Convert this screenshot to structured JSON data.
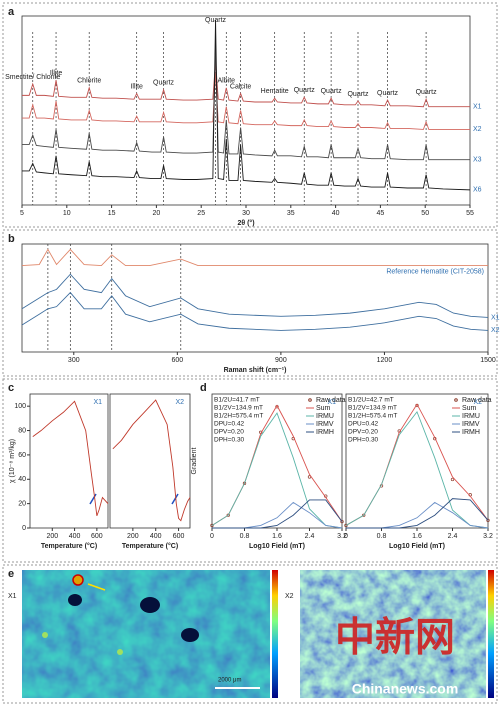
{
  "panels": [
    "a",
    "b",
    "c",
    "d",
    "e"
  ],
  "chart_data": [
    {
      "type": "line",
      "xlabel": "2θ (°)",
      "xlim": [
        5,
        55
      ],
      "xticks": [
        5,
        10,
        15,
        20,
        25,
        30,
        35,
        40,
        45,
        50,
        55
      ],
      "ylim": [
        0,
        100
      ],
      "series_labels": "end",
      "label_color": "#2f6fb0",
      "x": [
        5,
        5.8,
        6.2,
        6.6,
        7.5,
        8.5,
        8.8,
        9.1,
        10.5,
        12.2,
        12.5,
        12.8,
        14,
        15.5,
        17.5,
        17.8,
        18.1,
        19.5,
        20.5,
        20.8,
        21.1,
        23,
        24.5,
        26.3,
        26.6,
        26.9,
        27.5,
        27.8,
        28.1,
        29.1,
        29.4,
        29.7,
        31,
        32.9,
        33.2,
        33.5,
        35,
        36.2,
        36.5,
        36.8,
        38,
        39.2,
        39.5,
        39.8,
        41,
        42.2,
        42.5,
        42.8,
        44,
        45.5,
        45.8,
        46.1,
        48,
        49.8,
        50.1,
        50.4,
        52,
        55
      ],
      "series": [
        {
          "name": "X1",
          "color": "#c0504d",
          "values": [
            58,
            58,
            64,
            58,
            58,
            57.5,
            66,
            57.5,
            57,
            57,
            62,
            57,
            56.5,
            56.5,
            56,
            59,
            56,
            56,
            56,
            61,
            56,
            55.5,
            55.5,
            56,
            76,
            56,
            55.5,
            62,
            55.5,
            55,
            59,
            55,
            54.5,
            54.5,
            56.5,
            54.5,
            54,
            54,
            57,
            54,
            53.5,
            53.5,
            56.5,
            53.5,
            53,
            53,
            55,
            53,
            53,
            52.5,
            55.5,
            52.5,
            52.5,
            52,
            56,
            52,
            52,
            52
          ]
        },
        {
          "name": "X2",
          "color": "#d4675f",
          "values": [
            46,
            46,
            53,
            46,
            46,
            45.5,
            55,
            45.5,
            45,
            45,
            50,
            45,
            44.5,
            44.5,
            44,
            47,
            44,
            44,
            44,
            49,
            44,
            43.5,
            43.5,
            44,
            70,
            44,
            43.5,
            52,
            43.5,
            43,
            50,
            43,
            42.5,
            42.5,
            44.5,
            42.5,
            42,
            42,
            45,
            42,
            41.5,
            41.5,
            44.5,
            41.5,
            41,
            41,
            43,
            41,
            41,
            40.5,
            43.5,
            40.5,
            40.5,
            40,
            44,
            40,
            40,
            40
          ]
        },
        {
          "name": "X3",
          "color": "#4a4a4a",
          "values": [
            32,
            32,
            37,
            31.5,
            31,
            30.5,
            40,
            30.5,
            30,
            29.5,
            38,
            29.5,
            29,
            29,
            28.5,
            33,
            28.5,
            28,
            28,
            36,
            28,
            27.5,
            27.5,
            28,
            85,
            28,
            27.5,
            45,
            27,
            27,
            41,
            27,
            26.5,
            26,
            29,
            26,
            26,
            25.5,
            31,
            25.5,
            25.5,
            25,
            32,
            25,
            25,
            25,
            30,
            25,
            24.5,
            24.5,
            32,
            24.5,
            24,
            24,
            32,
            24,
            24,
            24
          ]
        },
        {
          "name": "X6",
          "color": "#1a1a1a",
          "values": [
            18,
            18,
            22,
            17.5,
            17,
            16.5,
            26,
            16.5,
            16,
            15.5,
            23,
            15.5,
            15,
            15,
            14.5,
            18,
            14.5,
            14,
            14,
            21,
            14,
            13.5,
            13.5,
            14,
            98,
            14,
            13.5,
            35,
            13,
            13,
            32,
            13,
            12.5,
            12,
            14,
            12,
            11.5,
            11,
            17,
            11,
            10.5,
            10.5,
            17,
            10.5,
            10,
            10,
            14,
            10,
            9.5,
            9.5,
            17,
            9.5,
            9,
            9,
            16,
            9,
            8.5,
            8
          ]
        }
      ],
      "annotations": [
        {
          "text": "Smectite/ Chlorite",
          "x": 6.2
        },
        {
          "text": "Illite",
          "x": 8.8
        },
        {
          "text": "Chlorite",
          "x": 12.5
        },
        {
          "text": "Illite",
          "x": 17.8
        },
        {
          "text": "Quartz",
          "x": 20.8
        },
        {
          "text": "Quartz",
          "x": 26.6
        },
        {
          "text": "Albite",
          "x": 27.8
        },
        {
          "text": "Calcite",
          "x": 29.4
        },
        {
          "text": "Hematite",
          "x": 33.2
        },
        {
          "text": "Quartz",
          "x": 36.5
        },
        {
          "text": "Quartz",
          "x": 39.5
        },
        {
          "text": "Quartz",
          "x": 42.5
        },
        {
          "text": "Quartz",
          "x": 45.8
        },
        {
          "text": "Quartz",
          "x": 50.1
        }
      ]
    },
    {
      "type": "line",
      "xlabel": "Raman shift (cm⁻¹)",
      "xlim": [
        150,
        1500
      ],
      "xticks": [
        300,
        600,
        900,
        1200,
        1500
      ],
      "ylim": [
        0,
        100
      ],
      "series_labels": "end",
      "label_color": "#2f6fb0",
      "markers": [
        225,
        290,
        410,
        610
      ],
      "x": [
        150,
        200,
        225,
        250,
        290,
        330,
        380,
        410,
        450,
        520,
        610,
        660,
        750,
        900,
        1000,
        1100,
        1200,
        1300,
        1350,
        1400,
        1450,
        1500
      ],
      "series": [
        {
          "name": "Reference Hematite (CIT-2058)",
          "color": "#e0876a",
          "values": [
            80,
            81,
            95,
            81,
            95,
            81,
            80,
            90,
            80,
            80,
            86,
            80,
            80,
            80,
            80,
            80,
            80,
            80,
            80,
            80,
            80,
            80
          ]
        },
        {
          "name": "X1",
          "color": "#3f6f9f",
          "values": [
            40,
            50,
            55,
            58,
            72,
            58,
            55,
            68,
            52,
            42,
            50,
            40,
            35,
            33,
            34,
            36,
            40,
            46,
            44,
            36,
            33,
            32
          ]
        },
        {
          "name": "X2",
          "color": "#3f6f9f",
          "values": [
            25,
            35,
            40,
            42,
            55,
            40,
            40,
            52,
            35,
            28,
            35,
            26,
            22,
            20,
            21,
            23,
            27,
            33,
            31,
            24,
            21,
            20
          ]
        }
      ]
    },
    {
      "type": "line",
      "title": "X1",
      "xlabel": "Temperature (°C)",
      "ylabel": "χ (10⁻⁸ m³/kg)",
      "xlim": [
        0,
        700
      ],
      "xticks": [
        200,
        400,
        600
      ],
      "ylim": [
        0,
        110
      ],
      "yticks": [
        0,
        20,
        40,
        60,
        80,
        100
      ],
      "x": [
        25,
        100,
        200,
        300,
        400,
        500,
        550,
        580,
        600,
        620,
        650,
        680,
        700
      ],
      "series": [
        {
          "name": "X1",
          "color": "#c0392b",
          "values": [
            75,
            80,
            88,
            95,
            104,
            80,
            45,
            25,
            10,
            15,
            25,
            22,
            20
          ]
        }
      ]
    },
    {
      "type": "line",
      "title": "X2",
      "xlabel": "Temperature (°C)",
      "xlim": [
        0,
        700
      ],
      "xticks": [
        200,
        400,
        600
      ],
      "ylim": [
        0,
        110
      ],
      "x": [
        25,
        100,
        200,
        300,
        400,
        500,
        550,
        580,
        600,
        620,
        650,
        680,
        700
      ],
      "series": [
        {
          "name": "X2",
          "color": "#c0392b",
          "values": [
            65,
            72,
            85,
            95,
            105,
            85,
            50,
            20,
            8,
            6,
            15,
            22,
            25
          ]
        }
      ]
    },
    {
      "type": "line",
      "title": "X1",
      "xlabel": "Log10 Field (mT)",
      "ylabel": "Gradient",
      "xlim": [
        0,
        3.2
      ],
      "xticks": [
        0,
        0.8,
        1.6,
        2.4,
        3.2
      ],
      "ylim": [
        0,
        1.05
      ],
      "legend": "upper right",
      "parameters": [
        "B1/2U=41.7 mT",
        "B1/2V=134.9 mT",
        "B1/2H=575.4 mT",
        "DPU=0.42",
        "DPV=0.20",
        "DPH=0.30"
      ],
      "x": [
        0,
        0.4,
        0.8,
        1.2,
        1.6,
        2.0,
        2.4,
        2.8,
        3.2
      ],
      "series": [
        {
          "name": "Raw data",
          "color": "#8b3a2a",
          "style": "markers",
          "values": [
            0.02,
            0.1,
            0.35,
            0.75,
            0.95,
            0.7,
            0.4,
            0.25,
            0.05
          ]
        },
        {
          "name": "Sum",
          "color": "#d9534f",
          "values": [
            0.02,
            0.1,
            0.35,
            0.74,
            0.96,
            0.72,
            0.42,
            0.24,
            0.05
          ]
        },
        {
          "name": "IRMU",
          "color": "#5bb5a8",
          "values": [
            0.02,
            0.1,
            0.35,
            0.72,
            0.9,
            0.55,
            0.15,
            0.02,
            0
          ]
        },
        {
          "name": "IRMV",
          "color": "#6a8fc7",
          "values": [
            0,
            0,
            0,
            0.02,
            0.08,
            0.2,
            0.12,
            0.02,
            0
          ]
        },
        {
          "name": "IRMH",
          "color": "#2e4f80",
          "values": [
            0,
            0,
            0,
            0,
            0.02,
            0.1,
            0.22,
            0.22,
            0.05
          ]
        }
      ]
    },
    {
      "type": "line",
      "title": "X2",
      "xlabel": "Log10 Field (mT)",
      "xlim": [
        0,
        3.2
      ],
      "xticks": [
        0,
        0.8,
        1.6,
        2.4,
        3.2
      ],
      "ylim": [
        0,
        1.05
      ],
      "legend": "upper right",
      "parameters": [
        "B1/2U=42.7 mT",
        "B1/2V=134.9 mT",
        "B1/2H=575.4 mT",
        "DPU=0.42",
        "DPV=0.20",
        "DPH=0.30"
      ],
      "x": [
        0,
        0.4,
        0.8,
        1.2,
        1.6,
        2.0,
        2.4,
        2.8,
        3.2
      ],
      "series": [
        {
          "name": "Raw data",
          "color": "#8b3a2a",
          "style": "markers",
          "values": [
            0.02,
            0.1,
            0.33,
            0.76,
            0.96,
            0.7,
            0.38,
            0.26,
            0.06
          ]
        },
        {
          "name": "Sum",
          "color": "#d9534f",
          "values": [
            0.02,
            0.1,
            0.34,
            0.75,
            0.97,
            0.71,
            0.4,
            0.25,
            0.06
          ]
        },
        {
          "name": "IRMU",
          "color": "#5bb5a8",
          "values": [
            0.02,
            0.1,
            0.34,
            0.73,
            0.91,
            0.55,
            0.14,
            0.02,
            0
          ]
        },
        {
          "name": "IRMV",
          "color": "#6a8fc7",
          "values": [
            0,
            0,
            0,
            0.02,
            0.08,
            0.2,
            0.12,
            0.02,
            0
          ]
        },
        {
          "name": "IRMH",
          "color": "#2e4f80",
          "values": [
            0,
            0,
            0,
            0,
            0.02,
            0.1,
            0.23,
            0.22,
            0.06
          ]
        }
      ]
    }
  ],
  "image_panel": {
    "labels": [
      "X1",
      "X2"
    ],
    "scale_bar": "2000 μm"
  },
  "watermark": {
    "text": "中新网",
    "site": "Chinanews.com"
  }
}
